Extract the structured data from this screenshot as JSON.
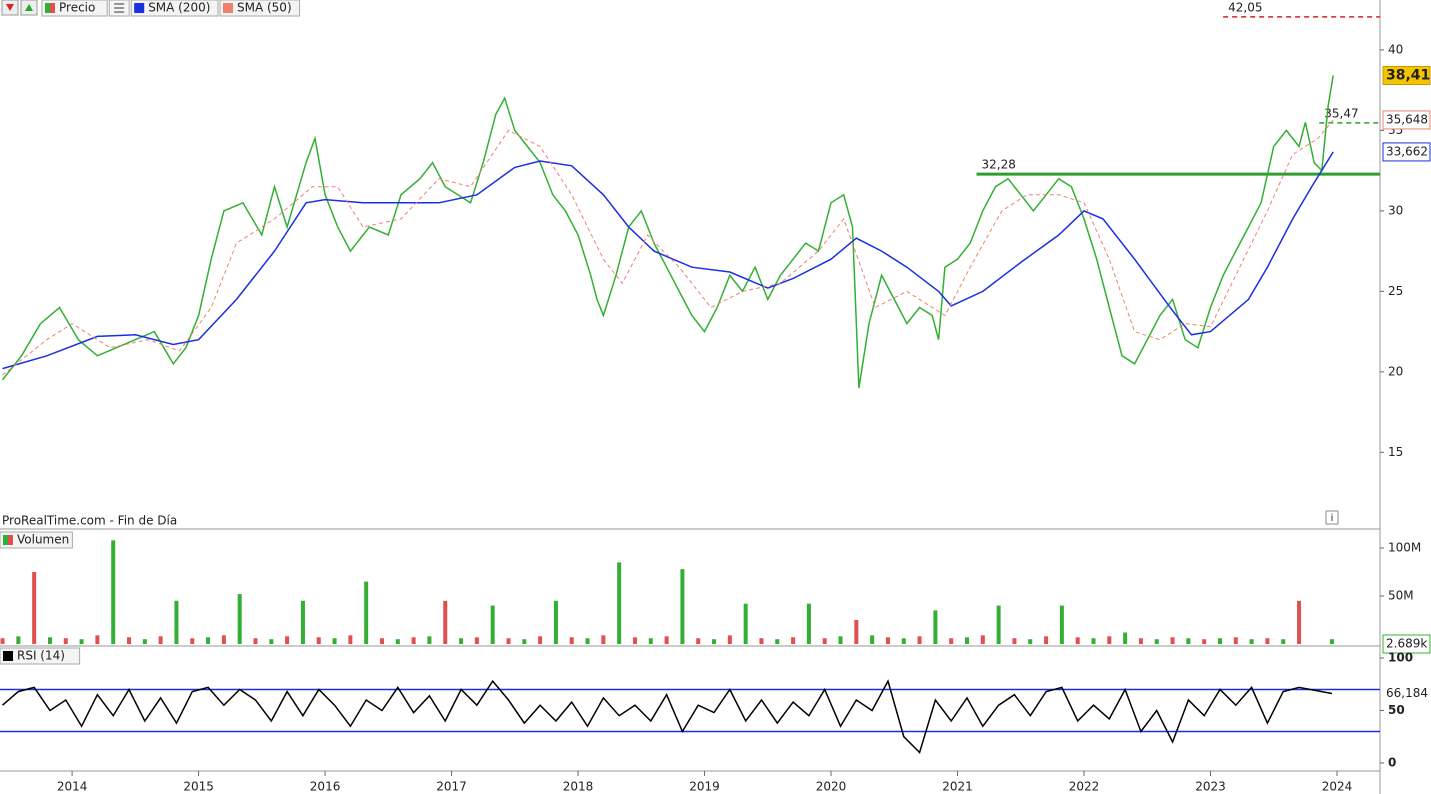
{
  "chart_data": [
    {
      "type": "line",
      "source": "ProRealTime.com - Fin de Día",
      "xlim": [
        2013.43,
        2024.34
      ],
      "xticks": [
        2014,
        2015,
        2016,
        2017,
        2018,
        2019,
        2020,
        2021,
        2022,
        2023,
        2024
      ],
      "ylim": [
        10.3,
        43.1
      ],
      "yticks": [
        15,
        20,
        25,
        30,
        35,
        40
      ],
      "x": [
        2013.45,
        2013.6,
        2013.75,
        2013.9,
        2014.05,
        2014.2,
        2014.35,
        2014.5,
        2014.65,
        2014.8,
        2014.9,
        2015.0,
        2015.1,
        2015.2,
        2015.35,
        2015.5,
        2015.6,
        2015.7,
        2015.85,
        2015.92,
        2016.0,
        2016.1,
        2016.2,
        2016.35,
        2016.5,
        2016.6,
        2016.75,
        2016.85,
        2016.95,
        2017.05,
        2017.15,
        2017.25,
        2017.35,
        2017.42,
        2017.5,
        2017.6,
        2017.7,
        2017.8,
        2017.9,
        2018.0,
        2018.1,
        2018.15,
        2018.2,
        2018.3,
        2018.4,
        2018.5,
        2018.6,
        2018.7,
        2018.8,
        2018.9,
        2019.0,
        2019.1,
        2019.2,
        2019.3,
        2019.4,
        2019.5,
        2019.6,
        2019.7,
        2019.8,
        2019.9,
        2020.0,
        2020.1,
        2020.17,
        2020.22,
        2020.3,
        2020.4,
        2020.5,
        2020.6,
        2020.7,
        2020.8,
        2020.85,
        2020.9,
        2021.0,
        2021.1,
        2021.2,
        2021.3,
        2021.4,
        2021.5,
        2021.6,
        2021.7,
        2021.8,
        2021.9,
        2022.0,
        2022.1,
        2022.2,
        2022.3,
        2022.4,
        2022.5,
        2022.6,
        2022.7,
        2022.8,
        2022.9,
        2023.0,
        2023.1,
        2023.2,
        2023.3,
        2023.4,
        2023.5,
        2023.6,
        2023.7,
        2023.75,
        2023.82,
        2023.88,
        2023.93,
        2023.97
      ],
      "series": [
        {
          "name": "Precio",
          "color": "#33b033",
          "values": [
            19.5,
            21,
            23,
            24,
            22,
            21,
            21.5,
            22,
            22.5,
            20.5,
            21.5,
            23.5,
            27,
            30,
            30.5,
            28.5,
            31.5,
            29,
            33,
            34.5,
            31,
            29,
            27.5,
            29,
            28.5,
            31,
            32,
            33,
            31.5,
            31,
            30.5,
            33,
            36,
            37,
            35,
            34,
            33,
            31,
            30,
            28.5,
            26,
            24.5,
            23.5,
            26,
            29,
            30,
            28,
            26.5,
            25,
            23.5,
            22.5,
            24,
            26,
            25,
            26.5,
            24.5,
            26,
            27,
            28,
            27.5,
            30.5,
            31,
            29,
            19,
            23,
            26,
            24.5,
            23,
            24,
            23.5,
            22,
            26.5,
            27,
            28,
            30,
            31.5,
            32,
            31,
            30,
            31,
            32,
            31.5,
            29.5,
            27,
            24,
            21,
            20.5,
            22,
            23.5,
            24.5,
            22,
            21.5,
            24,
            26,
            27.5,
            29,
            30.5,
            34,
            35,
            34,
            35.5,
            33,
            32.5,
            36.5,
            38.41
          ]
        },
        {
          "name": "SMA (200)",
          "color": "#1a2fe0",
          "x": [
            2013.45,
            2013.8,
            2014.2,
            2014.5,
            2014.8,
            2015.0,
            2015.3,
            2015.6,
            2015.85,
            2016.0,
            2016.3,
            2016.6,
            2016.9,
            2017.2,
            2017.5,
            2017.7,
            2017.95,
            2018.2,
            2018.4,
            2018.6,
            2018.9,
            2019.2,
            2019.5,
            2019.7,
            2020.0,
            2020.2,
            2020.4,
            2020.6,
            2020.85,
            2020.95,
            2021.2,
            2021.5,
            2021.8,
            2022.0,
            2022.15,
            2022.4,
            2022.7,
            2022.85,
            2023.0,
            2023.3,
            2023.45,
            2023.65,
            2023.8,
            2023.97
          ],
          "values": [
            20.2,
            21,
            22.2,
            22.3,
            21.7,
            22,
            24.5,
            27.5,
            30.5,
            30.7,
            30.5,
            30.5,
            30.5,
            31,
            32.7,
            33.1,
            32.8,
            31,
            29,
            27.5,
            26.5,
            26.2,
            25.2,
            25.8,
            27,
            28.3,
            27.5,
            26.5,
            25,
            24.1,
            25,
            26.8,
            28.5,
            30,
            29.5,
            27,
            23.8,
            22.3,
            22.5,
            24.5,
            26.5,
            29.5,
            31.5,
            33.662
          ]
        },
        {
          "name": "SMA (50)",
          "color": "#f08070",
          "dashed": true,
          "x": [
            2013.45,
            2013.8,
            2014.0,
            2014.3,
            2014.6,
            2014.85,
            2015.1,
            2015.3,
            2015.6,
            2015.9,
            2016.1,
            2016.3,
            2016.6,
            2016.9,
            2017.15,
            2017.45,
            2017.7,
            2017.95,
            2018.2,
            2018.35,
            2018.55,
            2018.8,
            2019.05,
            2019.3,
            2019.6,
            2019.9,
            2020.1,
            2020.35,
            2020.6,
            2020.9,
            2021.1,
            2021.35,
            2021.55,
            2021.8,
            2022.0,
            2022.2,
            2022.4,
            2022.6,
            2022.8,
            2023.0,
            2023.2,
            2023.45,
            2023.65,
            2023.85,
            2023.97
          ],
          "values": [
            19.8,
            22,
            23,
            21.5,
            22,
            21.3,
            24,
            28,
            29.5,
            31.5,
            31.5,
            29,
            29.5,
            32,
            31.5,
            35,
            34,
            31,
            27,
            25.5,
            28.5,
            26.5,
            24,
            25,
            25.5,
            27.5,
            29.5,
            24,
            25,
            23.5,
            26.5,
            30,
            31,
            31,
            30.5,
            27,
            22.5,
            22,
            23,
            22.8,
            26,
            30,
            33.5,
            34.5,
            35.648
          ]
        }
      ],
      "levels": [
        {
          "value": 42.05,
          "label": "42,05",
          "color": "#d62020",
          "dashed": true,
          "x_start": 2023.1
        },
        {
          "value": 35.47,
          "label": "35,47",
          "color": "#2e9e2e",
          "dashed": true,
          "x_start": 2023.86
        },
        {
          "value": 32.28,
          "label": "32,28",
          "color": "#2e9e2e",
          "dashed": false,
          "x_start": 2021.15
        }
      ],
      "last_labels": [
        {
          "value": 38.41,
          "label": "38,41",
          "color": "#f5c400"
        },
        {
          "value": 35.648,
          "label": "35,648",
          "color": "#f08070"
        },
        {
          "value": 33.662,
          "label": "33,662",
          "color": "#1a2fe0"
        }
      ]
    },
    {
      "type": "bar",
      "xlim": [
        2013.43,
        2024.34
      ],
      "ylim": [
        0,
        118.75
      ],
      "yticks": [
        {
          "value": 50,
          "label": "50M"
        },
        {
          "value": 100,
          "label": "100M"
        }
      ],
      "x": [
        2013.45,
        2013.575,
        2013.7,
        2013.825,
        2013.95,
        2014.075,
        2014.2,
        2014.325,
        2014.45,
        2014.575,
        2014.7,
        2014.825,
        2014.95,
        2015.075,
        2015.2,
        2015.325,
        2015.45,
        2015.575,
        2015.7,
        2015.825,
        2015.95,
        2016.075,
        2016.2,
        2016.325,
        2016.45,
        2016.575,
        2016.7,
        2016.825,
        2016.95,
        2017.075,
        2017.2,
        2017.325,
        2017.45,
        2017.575,
        2017.7,
        2017.825,
        2017.95,
        2018.075,
        2018.2,
        2018.325,
        2018.45,
        2018.575,
        2018.7,
        2018.825,
        2018.95,
        2019.075,
        2019.2,
        2019.325,
        2019.45,
        2019.575,
        2019.7,
        2019.825,
        2019.95,
        2020.075,
        2020.2,
        2020.325,
        2020.45,
        2020.575,
        2020.7,
        2020.825,
        2020.95,
        2021.075,
        2021.2,
        2021.325,
        2021.45,
        2021.575,
        2021.7,
        2021.825,
        2021.95,
        2022.075,
        2022.2,
        2022.325,
        2022.45,
        2022.575,
        2022.7,
        2022.825,
        2022.95,
        2023.075,
        2023.2,
        2023.325,
        2023.45,
        2023.575,
        2023.7,
        2023.96
      ],
      "series": [
        {
          "name": "Volumen",
          "colors": [
            "#e05050",
            "#33b033"
          ],
          "values": [
            6,
            8,
            75,
            7,
            6,
            5,
            9,
            108,
            7,
            5,
            8,
            45,
            6,
            7,
            9,
            52,
            6,
            5,
            8,
            45,
            7,
            6,
            9,
            65,
            6,
            5,
            7,
            8,
            45,
            6,
            7,
            40,
            6,
            5,
            8,
            45,
            7,
            6,
            9,
            85,
            7,
            6,
            8,
            78,
            6,
            5,
            9,
            42,
            6,
            5,
            7,
            42,
            6,
            8,
            25,
            9,
            7,
            6,
            8,
            35,
            6,
            7,
            9,
            40,
            6,
            5,
            8,
            40,
            7,
            6,
            8,
            12,
            6,
            5,
            7,
            6,
            5,
            6,
            7,
            5,
            6,
            5,
            45,
            5
          ]
        }
      ],
      "last_labels": [
        {
          "value": 0.002689,
          "label": "2.689k",
          "color": "#33b033"
        }
      ]
    },
    {
      "type": "line",
      "xlim": [
        2013.43,
        2024.34
      ],
      "ylim": [
        -6.7,
        109.5
      ],
      "yticks": [
        0,
        50,
        100
      ],
      "x": [
        2013.45,
        2013.575,
        2013.7,
        2013.825,
        2013.95,
        2014.075,
        2014.2,
        2014.325,
        2014.45,
        2014.575,
        2014.7,
        2014.825,
        2014.95,
        2015.075,
        2015.2,
        2015.325,
        2015.45,
        2015.575,
        2015.7,
        2015.825,
        2015.95,
        2016.075,
        2016.2,
        2016.325,
        2016.45,
        2016.575,
        2016.7,
        2016.825,
        2016.95,
        2017.075,
        2017.2,
        2017.325,
        2017.45,
        2017.575,
        2017.7,
        2017.825,
        2017.95,
        2018.075,
        2018.2,
        2018.325,
        2018.45,
        2018.575,
        2018.7,
        2018.825,
        2018.95,
        2019.075,
        2019.2,
        2019.325,
        2019.45,
        2019.575,
        2019.7,
        2019.825,
        2019.95,
        2020.075,
        2020.2,
        2020.325,
        2020.45,
        2020.575,
        2020.7,
        2020.825,
        2020.95,
        2021.075,
        2021.2,
        2021.325,
        2021.45,
        2021.575,
        2021.7,
        2021.825,
        2021.95,
        2022.075,
        2022.2,
        2022.325,
        2022.45,
        2022.575,
        2022.7,
        2022.825,
        2022.95,
        2023.075,
        2023.2,
        2023.325,
        2023.45,
        2023.575,
        2023.7,
        2023.96
      ],
      "series": [
        {
          "name": "RSI (14)",
          "color": "#000000",
          "values": [
            55,
            68,
            72,
            50,
            60,
            35,
            65,
            45,
            70,
            40,
            62,
            38,
            68,
            72,
            55,
            70,
            60,
            40,
            68,
            45,
            70,
            55,
            35,
            60,
            50,
            72,
            48,
            64,
            40,
            70,
            55,
            78,
            60,
            38,
            55,
            40,
            58,
            35,
            62,
            45,
            55,
            40,
            65,
            30,
            55,
            48,
            70,
            40,
            60,
            38,
            58,
            45,
            70,
            35,
            60,
            50,
            78,
            25,
            10,
            60,
            40,
            62,
            35,
            55,
            65,
            45,
            68,
            72,
            40,
            55,
            42,
            70,
            30,
            50,
            20,
            60,
            45,
            70,
            55,
            72,
            38,
            68,
            72,
            66.184
          ]
        }
      ],
      "levels": [
        {
          "value": 30,
          "color": "#1a2fe0"
        },
        {
          "value": 70,
          "color": "#1a2fe0"
        }
      ],
      "last_labels": [
        {
          "value": 66.184,
          "label": "66,184",
          "color": "#ffffff"
        }
      ]
    }
  ]
}
